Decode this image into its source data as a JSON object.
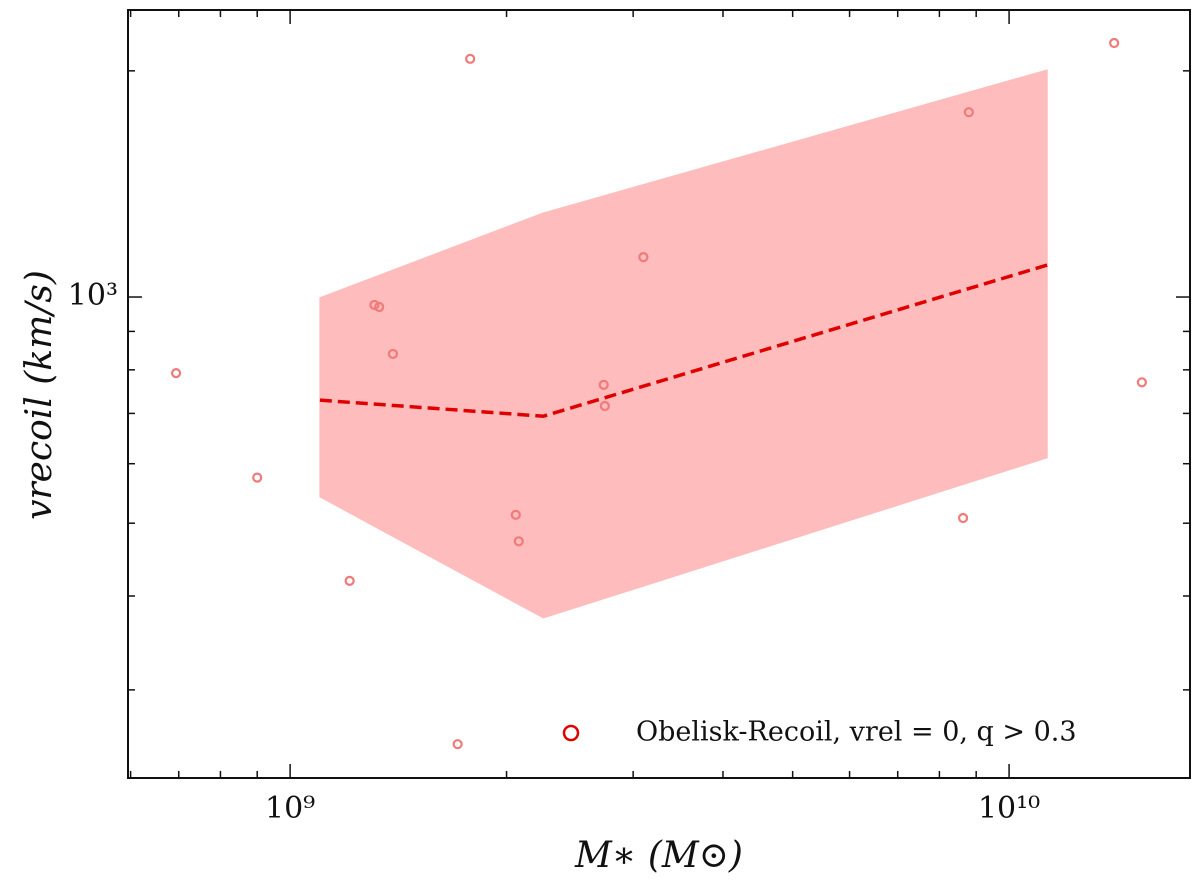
{
  "chart_data": {
    "type": "scatter",
    "xlabel": "M∗ (M⊙)",
    "ylabel": "vrecoil (km/s)",
    "xscale": "log",
    "yscale": "log",
    "xlim": [
      595000000.0,
      17850000000.0
    ],
    "ylim": [
      229,
      2410
    ],
    "xticks": [
      {
        "value": 1000000000.0,
        "label": "10⁹"
      },
      {
        "value": 10000000000.0,
        "label": "10¹⁰"
      }
    ],
    "xminor": [
      600000000.0,
      700000000.0,
      800000000.0,
      900000000.0,
      2000000000.0,
      3000000000.0,
      4000000000.0,
      5000000000.0,
      6000000000.0,
      7000000000.0,
      8000000000.0,
      9000000000.0
    ],
    "yticks": [
      {
        "value": 1000,
        "label": "10³"
      }
    ],
    "yminor": [
      300,
      400,
      500,
      600,
      700,
      800,
      900,
      2000
    ],
    "legend": "lower right",
    "series": [
      {
        "name": "Obelisk-Recoil, vrel = 0, q > 0.3",
        "color": "#f07a7a",
        "x": [
          694000000.0,
          900000000.0,
          1210000000.0,
          1310000000.0,
          1330000000.0,
          1390000000.0,
          1710000000.0,
          1780000000.0,
          2060000000.0,
          2080000000.0,
          2730000000.0,
          2740000000.0,
          3100000000.0,
          8630000000.0,
          8790000000.0,
          14000000000.0,
          15300000000.0
        ],
        "values": [
          792,
          575,
          419,
          976,
          970,
          840,
          254,
          2075,
          513,
          473,
          764,
          716,
          1130,
          508,
          1762,
          2178,
          770
        ]
      }
    ],
    "band": {
      "color": "#ffbcbc",
      "x": [
        1100000000.0,
        2250000000.0,
        11300000000.0
      ],
      "upper": [
        998,
        1294,
        2006
      ],
      "lower": [
        542,
        374,
        611
      ]
    },
    "median": {
      "color": "#e00000",
      "x": [
        1100000000.0,
        2250000000.0,
        11300000000.0
      ],
      "values": [
        729,
        694,
        1103
      ]
    }
  }
}
